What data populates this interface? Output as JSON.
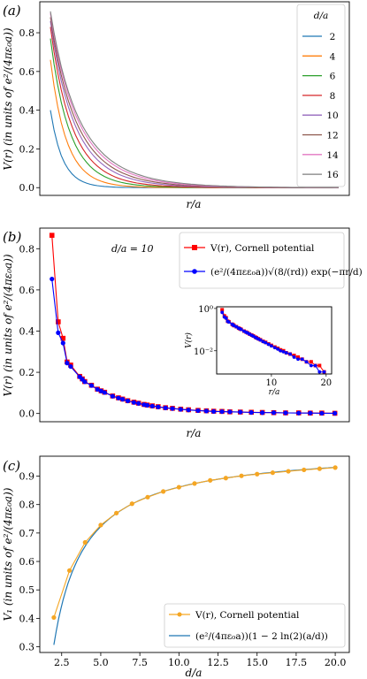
{
  "chart_data": [
    {
      "type": "line",
      "panel_label": "(a)",
      "xlabel": "r/a",
      "ylabel": "V(r) (in units of e²/(4πε₀a))",
      "ylim": [
        -0.04,
        0.96
      ],
      "xlim": [
        0.3,
        20.7
      ],
      "x_ticks_labeled": false,
      "y_ticks": [
        "0.0",
        "0.2",
        "0.4",
        "0.6",
        "0.8"
      ],
      "legend_title": "d/a",
      "legend_position": "top-right",
      "series": [
        {
          "name": "2",
          "color": "#1f77b4",
          "start": 0.4,
          "decay": 1.0,
          "end": 0.0
        },
        {
          "name": "4",
          "color": "#ff7f0e",
          "start": 0.66,
          "decay": 1.4,
          "end": 0.0
        },
        {
          "name": "6",
          "color": "#2ca02c",
          "start": 0.77,
          "decay": 1.82,
          "end": 0.0
        },
        {
          "name": "8",
          "color": "#d62728",
          "start": 0.83,
          "decay": 2.15,
          "end": 0.0
        },
        {
          "name": "10",
          "color": "#9467bd",
          "start": 0.86,
          "decay": 2.55,
          "end": 0.0
        },
        {
          "name": "12",
          "color": "#8c564b",
          "start": 0.88,
          "decay": 2.85,
          "end": 0.0
        },
        {
          "name": "14",
          "color": "#e377c2",
          "start": 0.9,
          "decay": 3.15,
          "end": 0.0
        },
        {
          "name": "16",
          "color": "#7f7f7f",
          "start": 0.91,
          "decay": 3.4,
          "end": 0.0
        }
      ]
    },
    {
      "type": "line",
      "panel_label": "(b)",
      "xlabel": "r/a",
      "ylabel": "V(r) (in units of e²/(4πε₀a))",
      "annotation": "d/a = 10",
      "ylim": [
        -0.04,
        0.9
      ],
      "xlim": [
        0.0,
        20.0
      ],
      "x_ticks_labeled": false,
      "y_ticks": [
        "0.0",
        "0.2",
        "0.4",
        "0.6",
        "0.8"
      ],
      "legend_position": "top-right",
      "series": [
        {
          "name": "V(r), Cornell potential",
          "color": "#ff0000",
          "marker": "square",
          "x": [
            1.0,
            1.4142,
            1.7321,
            2.0,
            2.2361,
            2.8284,
            3.0,
            3.1623,
            3.6056,
            4.0,
            4.2426,
            4.4721,
            5.0,
            5.3852,
            5.6569,
            6.0,
            6.4031,
            6.7082,
            7.0711,
            7.2801,
            7.6158,
            8.0,
            8.4853,
            8.9443,
            9.4868,
            10.0,
            10.6301,
            11.1803,
            11.6619,
            12.2066,
            12.7279,
            13.4164,
            14.1421,
            14.8661,
            15.6205,
            16.4012,
            17.2627,
            18.0278,
            18.7883,
            19.6469
          ],
          "y": [
            0.865,
            0.445,
            0.365,
            0.25,
            0.235,
            0.18,
            0.168,
            0.155,
            0.137,
            0.118,
            0.11,
            0.103,
            0.085,
            0.076,
            0.07,
            0.062,
            0.055,
            0.05,
            0.044,
            0.041,
            0.037,
            0.033,
            0.028,
            0.025,
            0.021,
            0.018,
            0.015,
            0.013,
            0.011,
            0.01,
            0.008,
            0.007,
            0.006,
            0.005,
            0.004,
            0.003,
            0.003,
            0.002,
            0.002,
            0.001
          ]
        },
        {
          "name": "(e²/(4πεε₀a))√(8/(rd)) exp(−πr/d)",
          "color": "#0000ff",
          "marker": "circle",
          "x": [
            1.0,
            1.4142,
            1.7321,
            2.0,
            2.2361,
            2.8284,
            3.0,
            3.1623,
            3.6056,
            4.0,
            4.2426,
            4.4721,
            5.0,
            5.3852,
            5.6569,
            6.0,
            6.4031,
            6.7082,
            7.0711,
            7.2801,
            7.6158,
            8.0,
            8.4853,
            8.9443,
            9.4868,
            10.0,
            10.6301,
            11.1803,
            11.6619,
            12.2066,
            12.7279,
            13.4164,
            14.1421,
            14.8661,
            15.6205,
            16.4012,
            17.2627,
            18.0278,
            18.7883,
            19.6469
          ],
          "y": [
            0.653,
            0.392,
            0.342,
            0.245,
            0.228,
            0.178,
            0.166,
            0.154,
            0.136,
            0.117,
            0.109,
            0.102,
            0.084,
            0.075,
            0.069,
            0.061,
            0.054,
            0.049,
            0.043,
            0.04,
            0.036,
            0.032,
            0.027,
            0.024,
            0.02,
            0.017,
            0.014,
            0.012,
            0.01,
            0.009,
            0.008,
            0.007,
            0.005,
            0.004,
            0.004,
            0.003,
            0.002,
            0.002,
            0.001,
            0.001
          ]
        }
      ],
      "inset": {
        "type": "line",
        "xlabel": "r/a",
        "ylabel": "V(r)",
        "yscale": "log",
        "xlim": [
          0.0,
          21.0
        ],
        "ylim": [
          0.0008,
          1.2
        ],
        "x_ticks": [
          10,
          20
        ],
        "y_ticks": [
          "10⁰",
          "10⁻²"
        ]
      }
    },
    {
      "type": "line",
      "panel_label": "(c)",
      "xlabel": "d/a",
      "ylabel": "V₁ (in units of e²/(4πε₀a))",
      "xlim": [
        1.1,
        20.9
      ],
      "ylim": [
        0.28,
        0.97
      ],
      "x_ticks": [
        "2.5",
        "5.0",
        "7.5",
        "10.0",
        "12.5",
        "15.0",
        "17.5",
        "20.0"
      ],
      "y_ticks": [
        "0.3",
        "0.4",
        "0.5",
        "0.6",
        "0.7",
        "0.8",
        "0.9"
      ],
      "legend_position": "bottom-right",
      "series": [
        {
          "name": "V(r), Cornell potential",
          "color": "#f5a623",
          "marker": "circle",
          "x": [
            2,
            3,
            4,
            5,
            6,
            7,
            8,
            9,
            10,
            11,
            12,
            13,
            14,
            15,
            16,
            17,
            18,
            19,
            20
          ],
          "y": [
            0.403,
            0.568,
            0.667,
            0.728,
            0.77,
            0.803,
            0.826,
            0.846,
            0.861,
            0.874,
            0.885,
            0.893,
            0.901,
            0.907,
            0.912,
            0.917,
            0.922,
            0.926,
            0.93
          ]
        },
        {
          "name": "(e²/(4πε₀a))(1 − 2 ln(2)(a/d))",
          "color": "#1f77b4",
          "marker": "none",
          "formula_x_range": [
            2.0,
            20.0
          ]
        }
      ]
    }
  ]
}
